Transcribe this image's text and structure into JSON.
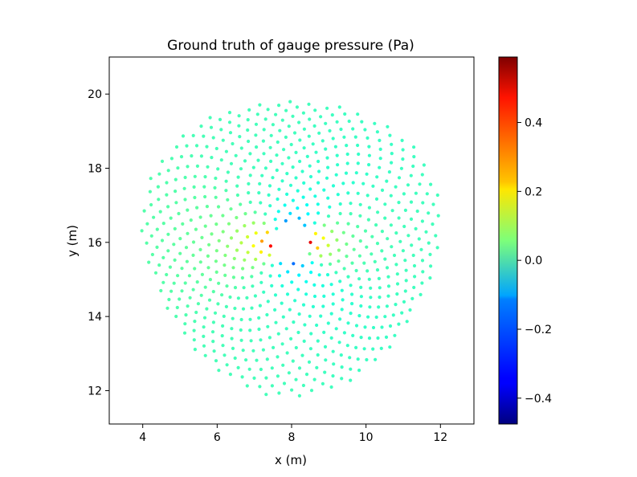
{
  "chart_data": {
    "type": "scatter",
    "title": "Ground truth of gauge pressure (Pa)",
    "xlabel": "x (m)",
    "ylabel": "y (m)",
    "xlim": [
      3.1,
      12.9
    ],
    "ylim": [
      11.1,
      21.0
    ],
    "xticks": [
      4,
      6,
      8,
      10,
      12
    ],
    "yticks": [
      12,
      14,
      16,
      18,
      20
    ],
    "grid": false,
    "colormap": "jet",
    "colorbar": {
      "vmin": -0.475,
      "vmax": 0.59,
      "ticks": [
        -0.4,
        -0.2,
        0.0,
        0.2,
        0.4
      ],
      "tick_labels": [
        "−0.4",
        "−0.2",
        "0.0",
        "0.2",
        "0.4"
      ],
      "position": "right"
    },
    "point_cloud": {
      "center": [
        8.0,
        16.0
      ],
      "inner_radius": 0.42,
      "outer_radius": 4.0,
      "point_count": 720,
      "notes": "Points spread in a spiral (phyllotaxis) disk around a cylinder of radius ~0.4 m; each point colored by gauge pressure in Pa: high (~0.59) on the upstream side, low (~-0.47) around the lateral and downstream side of the obstacle."
    }
  }
}
